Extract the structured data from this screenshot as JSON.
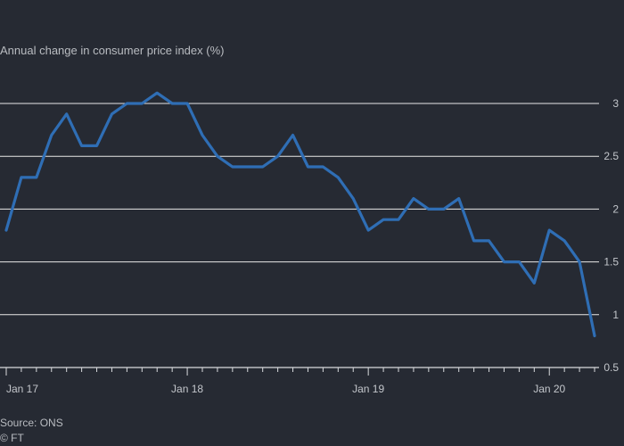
{
  "chart_data": {
    "type": "line",
    "subtitle": "Annual change in consumer price index (%)",
    "x_tick_labels": [
      "Jan 17",
      "Jan 18",
      "Jan 19",
      "Jan 20"
    ],
    "y_tick_labels": [
      "3",
      "2.5",
      "2",
      "1.5",
      "1",
      "0.5"
    ],
    "y_ticks": [
      3,
      2.5,
      2,
      1.5,
      1,
      0.5
    ],
    "ylim": [
      0.5,
      3.2
    ],
    "grid": true,
    "x": [
      "2017-01",
      "2017-02",
      "2017-03",
      "2017-04",
      "2017-05",
      "2017-06",
      "2017-07",
      "2017-08",
      "2017-09",
      "2017-10",
      "2017-11",
      "2017-12",
      "2018-01",
      "2018-02",
      "2018-03",
      "2018-04",
      "2018-05",
      "2018-06",
      "2018-07",
      "2018-08",
      "2018-09",
      "2018-10",
      "2018-11",
      "2018-12",
      "2019-01",
      "2019-02",
      "2019-03",
      "2019-04",
      "2019-05",
      "2019-06",
      "2019-07",
      "2019-08",
      "2019-09",
      "2019-10",
      "2019-11",
      "2019-12",
      "2020-01",
      "2020-02",
      "2020-03",
      "2020-04"
    ],
    "series": [
      {
        "values": [
          1.8,
          2.3,
          2.3,
          2.7,
          2.9,
          2.6,
          2.6,
          2.9,
          3.0,
          3.0,
          3.1,
          3.0,
          3.0,
          2.7,
          2.5,
          2.4,
          2.4,
          2.4,
          2.5,
          2.7,
          2.4,
          2.4,
          2.3,
          2.1,
          1.8,
          1.9,
          1.9,
          2.1,
          2.0,
          2.0,
          2.1,
          1.7,
          1.7,
          1.5,
          1.5,
          1.3,
          1.8,
          1.7,
          1.5,
          0.8
        ]
      }
    ],
    "line_color": "#2f6eb5",
    "grid_color": "#e8e8e8"
  },
  "footer": {
    "source": "Source: ONS",
    "credit": "© FT"
  }
}
